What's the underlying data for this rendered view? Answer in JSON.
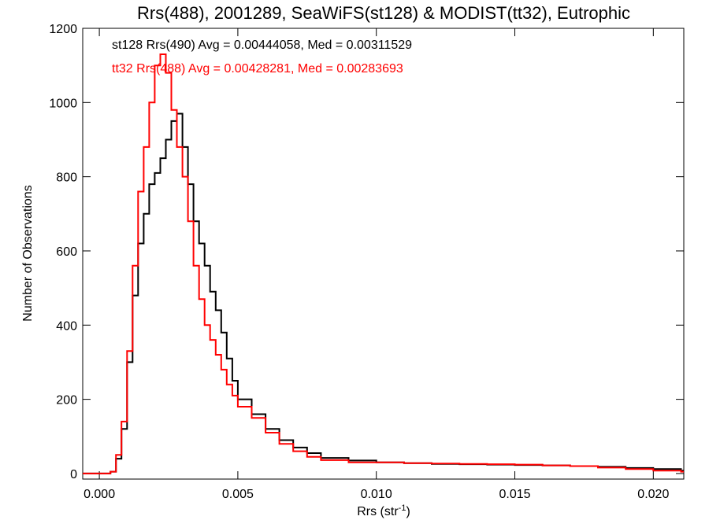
{
  "chart_data": {
    "type": "line",
    "title": "Rrs(488), 2001289, SeaWiFS(st128) & MODIST(tt32), Eutrophic",
    "xlabel_main": "Rrs (str",
    "xlabel_sup": "-1",
    "xlabel_close": ")",
    "ylabel": "Number of Observations",
    "xlim": [
      -0.0006,
      0.0211
    ],
    "ylim": [
      -15,
      1200
    ],
    "xticks": [
      0.0,
      0.005,
      0.01,
      0.015,
      0.02
    ],
    "xtick_labels": [
      "0.000",
      "0.005",
      "0.010",
      "0.015",
      "0.020"
    ],
    "yticks": [
      0,
      200,
      400,
      600,
      800,
      1000,
      1200
    ],
    "ytick_labels": [
      "0",
      "200",
      "400",
      "600",
      "800",
      "1000",
      "1200"
    ],
    "grid": false,
    "legend_position": "top-left",
    "series": [
      {
        "name": "st128 Rrs(490) Avg = 0.00444058, Med = 0.00311529",
        "color": "#000000",
        "step": "histogram",
        "x": [
          -0.0006,
          0.0,
          0.0004,
          0.0006,
          0.0008,
          0.001,
          0.0012,
          0.0014,
          0.0016,
          0.0018,
          0.002,
          0.0022,
          0.0024,
          0.0026,
          0.0028,
          0.003,
          0.0032,
          0.0034,
          0.0036,
          0.0038,
          0.004,
          0.0042,
          0.0044,
          0.0046,
          0.0048,
          0.005,
          0.0055,
          0.006,
          0.0065,
          0.007,
          0.0075,
          0.008,
          0.009,
          0.01,
          0.011,
          0.012,
          0.013,
          0.014,
          0.015,
          0.016,
          0.017,
          0.018,
          0.019,
          0.02,
          0.021
        ],
        "y": [
          0,
          0,
          5,
          40,
          120,
          300,
          480,
          620,
          700,
          780,
          810,
          850,
          900,
          950,
          970,
          880,
          780,
          680,
          620,
          560,
          490,
          440,
          380,
          310,
          250,
          200,
          160,
          120,
          90,
          70,
          55,
          42,
          35,
          30,
          28,
          26,
          25,
          24,
          23,
          22,
          20,
          18,
          15,
          12,
          8
        ]
      },
      {
        "name": "tt32 Rrs(488) Avg = 0.00428281, Med = 0.00283693",
        "color": "#ff0000",
        "step": "histogram",
        "x": [
          -0.0006,
          0.0,
          0.0004,
          0.0006,
          0.0008,
          0.001,
          0.0012,
          0.0014,
          0.0016,
          0.0018,
          0.002,
          0.0022,
          0.0024,
          0.0026,
          0.0028,
          0.003,
          0.0032,
          0.0034,
          0.0036,
          0.0038,
          0.004,
          0.0042,
          0.0044,
          0.0046,
          0.0048,
          0.005,
          0.0055,
          0.006,
          0.0065,
          0.007,
          0.0075,
          0.008,
          0.009,
          0.01,
          0.011,
          0.012,
          0.013,
          0.014,
          0.015,
          0.016,
          0.017,
          0.018,
          0.019,
          0.02,
          0.021
        ],
        "y": [
          0,
          0,
          5,
          50,
          140,
          330,
          560,
          760,
          880,
          1000,
          1100,
          1130,
          1080,
          980,
          880,
          800,
          680,
          560,
          470,
          400,
          360,
          320,
          280,
          240,
          210,
          180,
          150,
          110,
          80,
          60,
          45,
          36,
          30,
          30,
          28,
          27,
          26,
          25,
          24,
          22,
          20,
          16,
          12,
          8,
          5
        ]
      }
    ]
  }
}
